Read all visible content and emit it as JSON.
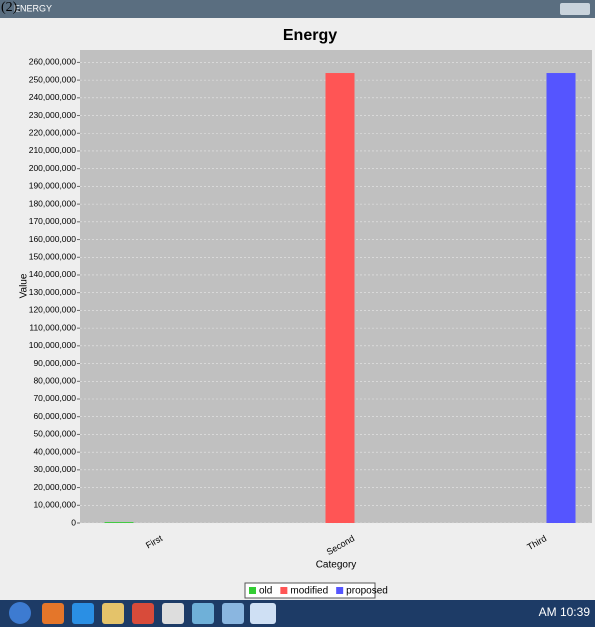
{
  "caption": "(2).",
  "window": {
    "title": "ENERGY"
  },
  "taskbar": {
    "time": "AM 10:39"
  },
  "chart_data": {
    "type": "bar",
    "title": "Energy",
    "x_label": "Category",
    "y_label": "Value",
    "categories": [
      "First",
      "Second",
      "Third"
    ],
    "series": [
      {
        "name": "old",
        "color": "#33cc33",
        "values": [
          500000,
          null,
          null
        ]
      },
      {
        "name": "modified",
        "color": "#ff5555",
        "values": [
          null,
          254000000,
          null
        ]
      },
      {
        "name": "proposed",
        "color": "#5555ff",
        "values": [
          null,
          null,
          254000000
        ]
      }
    ],
    "ylim": [
      0,
      267000000
    ],
    "yticks": [
      0,
      {
        "value": 10000000,
        "label": "10,000,000"
      },
      {
        "value": 20000000,
        "label": "20,000,000"
      },
      {
        "value": 30000000,
        "label": "30,000,000"
      },
      {
        "value": 40000000,
        "label": "40,000,000"
      },
      {
        "value": 50000000,
        "label": "50,000,000"
      },
      {
        "value": 60000000,
        "label": "60,000,000"
      },
      {
        "value": 70000000,
        "label": "70,000,000"
      },
      {
        "value": 80000000,
        "label": "80,000,000"
      },
      {
        "value": 90000000,
        "label": "90,000,000"
      },
      {
        "value": 100000000,
        "label": "100,000,000"
      },
      {
        "value": 110000000,
        "label": "110,000,000"
      },
      {
        "value": 120000000,
        "label": "120,000,000"
      },
      {
        "value": 130000000,
        "label": "130,000,000"
      },
      {
        "value": 140000000,
        "label": "140,000,000"
      },
      {
        "value": 150000000,
        "label": "150,000,000"
      },
      {
        "value": 160000000,
        "label": "160,000,000"
      },
      {
        "value": 170000000,
        "label": "170,000,000"
      },
      {
        "value": 180000000,
        "label": "180,000,000"
      },
      {
        "value": 190000000,
        "label": "190,000,000"
      },
      {
        "value": 200000000,
        "label": "200,000,000"
      },
      {
        "value": 210000000,
        "label": "210,000,000"
      },
      {
        "value": 220000000,
        "label": "220,000,000"
      },
      {
        "value": 230000000,
        "label": "230,000,000"
      },
      {
        "value": 240000000,
        "label": "240,000,000"
      },
      {
        "value": 250000000,
        "label": "250,000,000"
      },
      {
        "value": 260000000,
        "label": "260,000,000"
      }
    ],
    "grid": true,
    "legend": "bottom"
  }
}
